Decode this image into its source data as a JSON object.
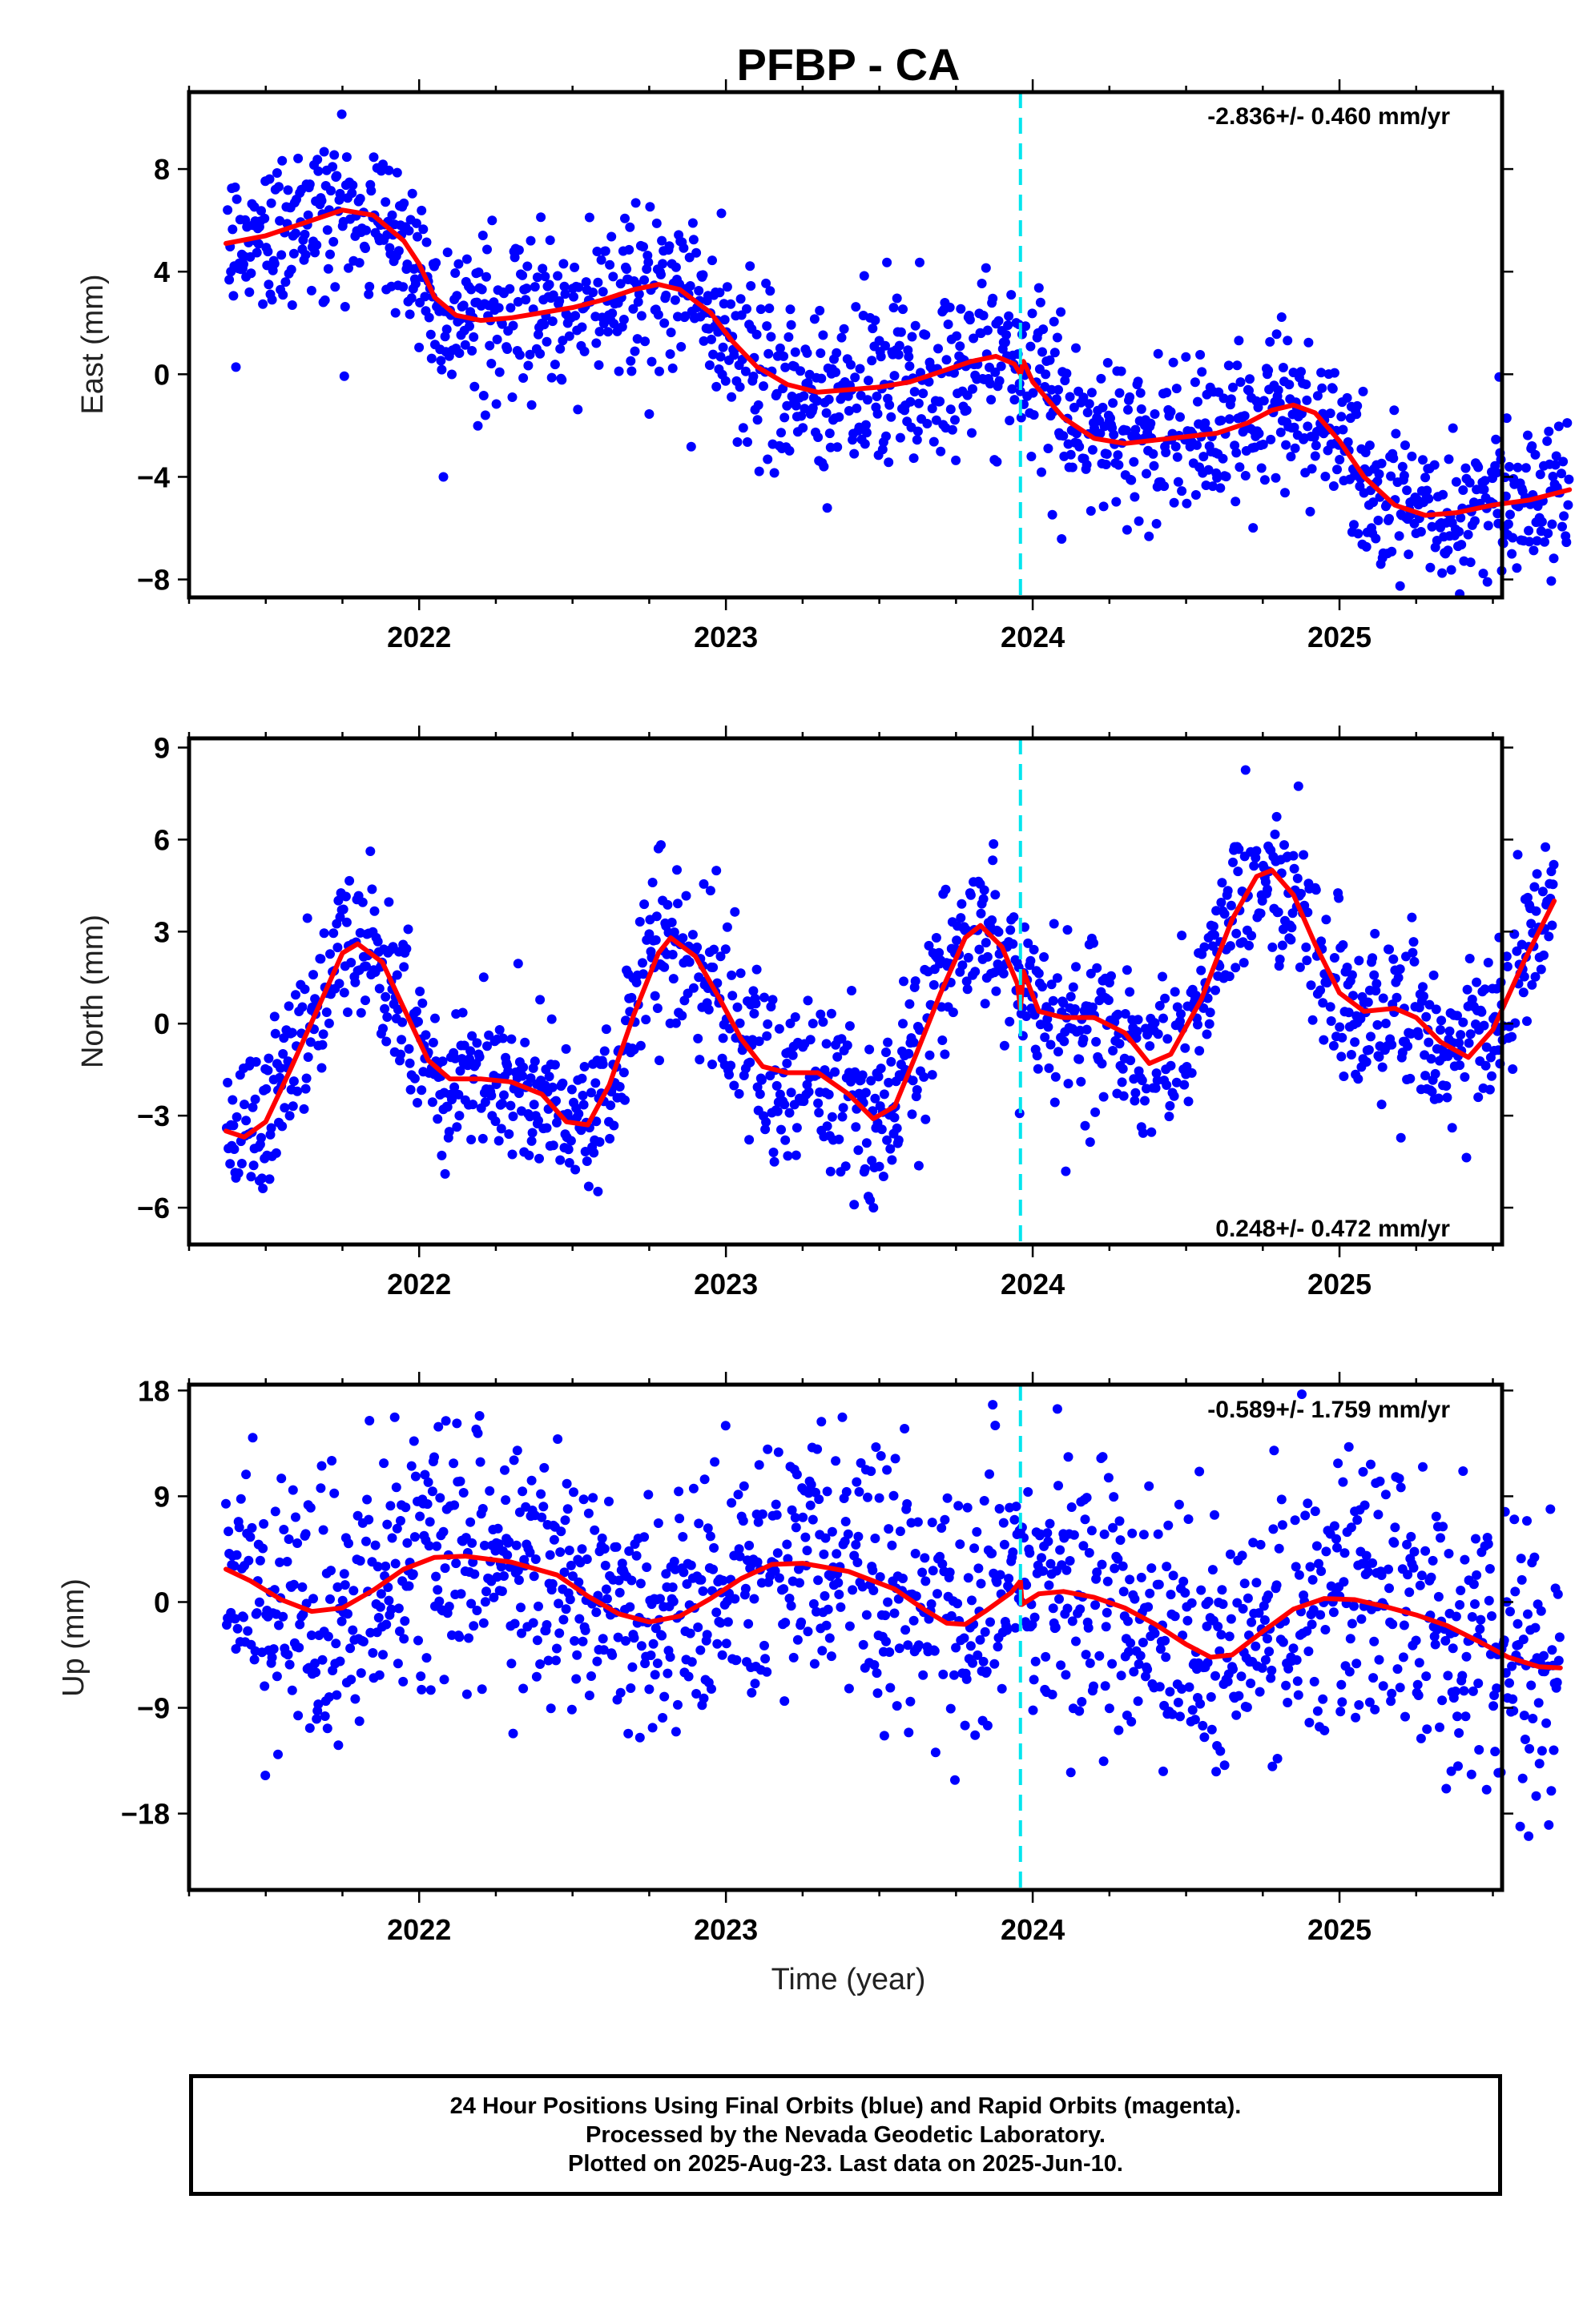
{
  "figure": {
    "title": "PFBP - CA",
    "xlabel": "Time (year)",
    "caption": [
      "24 Hour Positions Using Final Orbits (blue) and Rapid Orbits (magenta).",
      "Processed by the Nevada Geodetic Laboratory.",
      "Plotted on 2025-Aug-23. Last data on 2025-Jun-10."
    ],
    "colors": {
      "points": "#0000ff",
      "model": "#ff0000",
      "event_line": "#00e5ee",
      "frame": "#000000"
    }
  },
  "chart_data": [
    {
      "type": "scatter",
      "component": "east",
      "ylabel": "East (mm)",
      "rate_label": "-2.836+/- 0.460 mm/yr",
      "rate_position": "top-right",
      "xlim": [
        2021.25,
        2025.53
      ],
      "ylim": [
        -8.7,
        11.0
      ],
      "x_ticks": [
        2022,
        2023,
        2024,
        2025
      ],
      "y_ticks": [
        8,
        4,
        0,
        -4,
        -8
      ],
      "y_tick_labels": [
        "8",
        "4",
        "0",
        "−4",
        "−8"
      ],
      "event_line_x": 2023.96,
      "scatter_noise_mm": 1.6,
      "model_knots": [
        [
          2021.37,
          5.1
        ],
        [
          2021.5,
          5.4
        ],
        [
          2021.65,
          6.0
        ],
        [
          2021.75,
          6.4
        ],
        [
          2021.85,
          6.2
        ],
        [
          2021.95,
          5.2
        ],
        [
          2022.0,
          4.3
        ],
        [
          2022.05,
          3.0
        ],
        [
          2022.12,
          2.3
        ],
        [
          2022.2,
          2.1
        ],
        [
          2022.3,
          2.2
        ],
        [
          2022.4,
          2.4
        ],
        [
          2022.5,
          2.6
        ],
        [
          2022.6,
          2.9
        ],
        [
          2022.7,
          3.3
        ],
        [
          2022.78,
          3.5
        ],
        [
          2022.85,
          3.3
        ],
        [
          2022.95,
          2.4
        ],
        [
          2023.02,
          1.3
        ],
        [
          2023.1,
          0.3
        ],
        [
          2023.2,
          -0.4
        ],
        [
          2023.3,
          -0.7
        ],
        [
          2023.4,
          -0.6
        ],
        [
          2023.5,
          -0.5
        ],
        [
          2023.6,
          -0.3
        ],
        [
          2023.7,
          0.1
        ],
        [
          2023.8,
          0.5
        ],
        [
          2023.88,
          0.7
        ],
        [
          2023.94,
          0.4
        ],
        [
          2023.96,
          0.0
        ],
        [
          2023.97,
          0.5
        ],
        [
          2024.0,
          -0.3
        ],
        [
          2024.05,
          -1.0
        ],
        [
          2024.1,
          -1.7
        ],
        [
          2024.2,
          -2.5
        ],
        [
          2024.3,
          -2.7
        ],
        [
          2024.45,
          -2.5
        ],
        [
          2024.6,
          -2.3
        ],
        [
          2024.7,
          -1.9
        ],
        [
          2024.78,
          -1.4
        ],
        [
          2024.85,
          -1.2
        ],
        [
          2024.92,
          -1.5
        ],
        [
          2025.0,
          -2.6
        ],
        [
          2025.08,
          -4.0
        ],
        [
          2025.18,
          -5.1
        ],
        [
          2025.28,
          -5.5
        ],
        [
          2025.38,
          -5.4
        ],
        [
          2025.5,
          -5.1
        ],
        [
          2025.62,
          -4.9
        ],
        [
          2025.75,
          -4.5
        ]
      ]
    },
    {
      "type": "scatter",
      "component": "north",
      "ylabel": "North (mm)",
      "rate_label": "0.248+/- 0.472 mm/yr",
      "rate_position": "bottom-right",
      "xlim": [
        2021.25,
        2025.53
      ],
      "ylim": [
        -7.2,
        9.3
      ],
      "x_ticks": [
        2022,
        2023,
        2024,
        2025
      ],
      "y_ticks": [
        9,
        6,
        3,
        0,
        -3,
        -6
      ],
      "y_tick_labels": [
        "9",
        "6",
        "3",
        "0",
        "−3",
        "−6"
      ],
      "event_line_x": 2023.96,
      "scatter_noise_mm": 1.3,
      "model_knots": [
        [
          2021.37,
          -3.5
        ],
        [
          2021.43,
          -3.7
        ],
        [
          2021.5,
          -3.2
        ],
        [
          2021.58,
          -1.5
        ],
        [
          2021.67,
          0.5
        ],
        [
          2021.75,
          2.3
        ],
        [
          2021.8,
          2.6
        ],
        [
          2021.88,
          2.0
        ],
        [
          2021.95,
          0.5
        ],
        [
          2022.03,
          -1.2
        ],
        [
          2022.1,
          -1.8
        ],
        [
          2022.2,
          -1.8
        ],
        [
          2022.3,
          -1.9
        ],
        [
          2022.4,
          -2.3
        ],
        [
          2022.48,
          -3.2
        ],
        [
          2022.55,
          -3.3
        ],
        [
          2022.62,
          -2.0
        ],
        [
          2022.7,
          0.3
        ],
        [
          2022.78,
          2.3
        ],
        [
          2022.82,
          2.8
        ],
        [
          2022.9,
          2.2
        ],
        [
          2022.98,
          0.8
        ],
        [
          2023.05,
          -0.5
        ],
        [
          2023.12,
          -1.4
        ],
        [
          2023.2,
          -1.6
        ],
        [
          2023.3,
          -1.6
        ],
        [
          2023.4,
          -2.3
        ],
        [
          2023.48,
          -3.1
        ],
        [
          2023.55,
          -2.7
        ],
        [
          2023.62,
          -1.0
        ],
        [
          2023.7,
          1.0
        ],
        [
          2023.78,
          2.8
        ],
        [
          2023.83,
          3.2
        ],
        [
          2023.9,
          2.5
        ],
        [
          2023.95,
          1.3
        ],
        [
          2023.96,
          0.5
        ],
        [
          2023.97,
          1.7
        ],
        [
          2024.02,
          0.4
        ],
        [
          2024.1,
          0.2
        ],
        [
          2024.2,
          0.2
        ],
        [
          2024.3,
          -0.3
        ],
        [
          2024.38,
          -1.3
        ],
        [
          2024.45,
          -1.0
        ],
        [
          2024.55,
          0.8
        ],
        [
          2024.65,
          3.4
        ],
        [
          2024.73,
          4.8
        ],
        [
          2024.78,
          5.0
        ],
        [
          2024.85,
          4.2
        ],
        [
          2024.92,
          2.6
        ],
        [
          2025.0,
          1.0
        ],
        [
          2025.08,
          0.4
        ],
        [
          2025.18,
          0.5
        ],
        [
          2025.25,
          0.2
        ],
        [
          2025.33,
          -0.6
        ],
        [
          2025.42,
          -1.1
        ],
        [
          2025.5,
          -0.2
        ],
        [
          2025.6,
          2.0
        ],
        [
          2025.7,
          4.0
        ]
      ]
    },
    {
      "type": "scatter",
      "component": "up",
      "ylabel": "Up (mm)",
      "rate_label": "-0.589+/- 1.759 mm/yr",
      "rate_position": "top-right",
      "xlim": [
        2021.25,
        2025.53
      ],
      "ylim": [
        -24.5,
        18.5
      ],
      "x_ticks": [
        2022,
        2023,
        2024,
        2025
      ],
      "y_ticks": [
        18,
        9,
        0,
        -9,
        -18
      ],
      "y_tick_labels": [
        "18",
        "9",
        "0",
        "−9",
        "−18"
      ],
      "event_line_x": 2023.96,
      "scatter_noise_mm": 5.6,
      "model_knots": [
        [
          2021.37,
          2.8
        ],
        [
          2021.45,
          1.8
        ],
        [
          2021.55,
          0.2
        ],
        [
          2021.65,
          -0.8
        ],
        [
          2021.75,
          -0.5
        ],
        [
          2021.85,
          1.0
        ],
        [
          2021.95,
          2.8
        ],
        [
          2022.05,
          3.8
        ],
        [
          2022.15,
          3.9
        ],
        [
          2022.3,
          3.4
        ],
        [
          2022.45,
          2.3
        ],
        [
          2022.55,
          0.5
        ],
        [
          2022.65,
          -1.0
        ],
        [
          2022.75,
          -1.7
        ],
        [
          2022.85,
          -1.2
        ],
        [
          2022.95,
          0.3
        ],
        [
          2023.05,
          2.0
        ],
        [
          2023.15,
          3.2
        ],
        [
          2023.25,
          3.3
        ],
        [
          2023.4,
          2.6
        ],
        [
          2023.55,
          1.1
        ],
        [
          2023.65,
          -0.7
        ],
        [
          2023.72,
          -1.8
        ],
        [
          2023.78,
          -1.9
        ],
        [
          2023.85,
          -0.7
        ],
        [
          2023.93,
          0.8
        ],
        [
          2023.96,
          1.8
        ],
        [
          2023.965,
          -0.2
        ],
        [
          2024.02,
          0.7
        ],
        [
          2024.1,
          0.9
        ],
        [
          2024.2,
          0.4
        ],
        [
          2024.3,
          -0.5
        ],
        [
          2024.4,
          -1.9
        ],
        [
          2024.5,
          -3.6
        ],
        [
          2024.58,
          -4.7
        ],
        [
          2024.65,
          -4.5
        ],
        [
          2024.75,
          -2.5
        ],
        [
          2024.85,
          -0.6
        ],
        [
          2024.95,
          0.3
        ],
        [
          2025.05,
          0.2
        ],
        [
          2025.15,
          -0.4
        ],
        [
          2025.25,
          -1.1
        ],
        [
          2025.35,
          -2.0
        ],
        [
          2025.45,
          -3.3
        ],
        [
          2025.55,
          -4.7
        ],
        [
          2025.65,
          -5.5
        ],
        [
          2025.72,
          -5.6
        ]
      ]
    }
  ]
}
